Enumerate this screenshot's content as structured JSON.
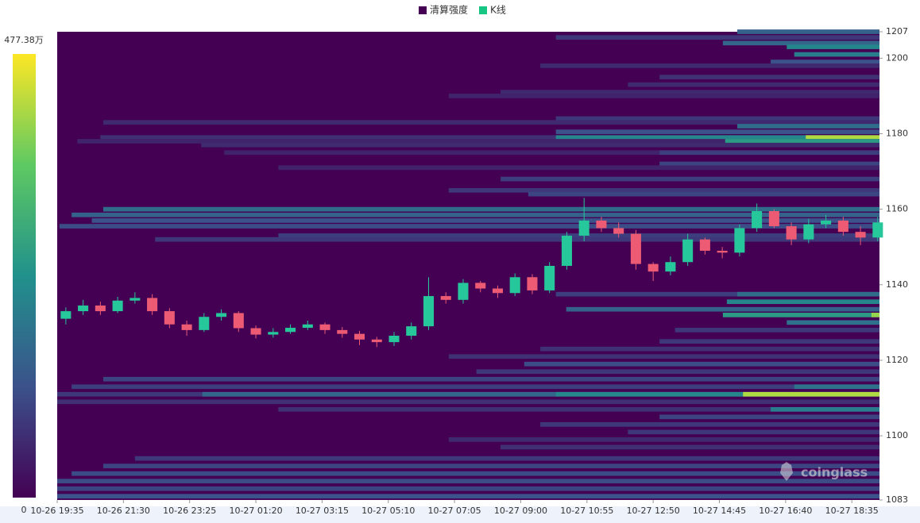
{
  "chart_data": {
    "type": "heatmap-candlestick",
    "watermark": "coinglass",
    "series": [
      {
        "name": "清算强度",
        "color": "#440154"
      },
      {
        "name": "K线",
        "color": "#16c784"
      }
    ],
    "clim": [
      0,
      {
        "value": 477.38,
        "label": "477.38万"
      }
    ],
    "xlim": [
      0,
      1428
    ],
    "xticks": [
      {
        "value": 0,
        "label": "10-26 19:35"
      },
      {
        "value": 115,
        "label": "10-26 21:30"
      },
      {
        "value": 230,
        "label": "10-26 23:25"
      },
      {
        "value": 345,
        "label": "10-27 01:20"
      },
      {
        "value": 460,
        "label": "10-27 03:15"
      },
      {
        "value": 575,
        "label": "10-27 05:10"
      },
      {
        "value": 690,
        "label": "10-27 07:05"
      },
      {
        "value": 805,
        "label": "10-27 09:00"
      },
      {
        "value": 920,
        "label": "10-27 10:55"
      },
      {
        "value": 1035,
        "label": "10-27 12:50"
      },
      {
        "value": 1150,
        "label": "10-27 14:45"
      },
      {
        "value": 1265,
        "label": "10-27 16:40"
      },
      {
        "value": 1380,
        "label": "10-27 18:35"
      }
    ],
    "ylim": [
      1083,
      1207
    ],
    "yticks": [
      1083,
      1100,
      1120,
      1140,
      1160,
      1180,
      1200,
      1207
    ],
    "up_color": "#26c79a",
    "down_color": "#ec5b73",
    "heatmap": [
      {
        "price": 1207,
        "from": 1181,
        "value": 150
      },
      {
        "price": 1205.5,
        "from": 866,
        "value": 80
      },
      {
        "price": 1204,
        "from": 1156,
        "value": 160
      },
      {
        "price": 1203,
        "from": 1267,
        "value": 220
      },
      {
        "price": 1201,
        "from": 1280,
        "value": 200
      },
      {
        "price": 1199,
        "from": 1239,
        "value": 120
      },
      {
        "price": 1198,
        "from": 839,
        "value": 60
      },
      {
        "price": 1195,
        "from": 1046,
        "value": 70
      },
      {
        "price": 1193,
        "from": 991,
        "value": 60
      },
      {
        "price": 1191,
        "from": 770,
        "value": 60
      },
      {
        "price": 1190,
        "from": 680,
        "value": 50
      },
      {
        "price": 1184,
        "from": 866,
        "value": 80
      },
      {
        "price": 1183,
        "from": 80,
        "value": 60
      },
      {
        "price": 1182,
        "from": 1181,
        "value": 170
      },
      {
        "price": 1180.5,
        "from": 866,
        "value": 120
      },
      {
        "price": 1179,
        "from": 75,
        "value": 70
      },
      {
        "price": 1179,
        "from": 866,
        "value": 220
      },
      {
        "price": 1179,
        "from": 1300,
        "value": 420
      },
      {
        "price": 1178,
        "from": 35,
        "value": 50
      },
      {
        "price": 1178,
        "from": 1160,
        "value": 260
      },
      {
        "price": 1177,
        "from": 250,
        "value": 60
      },
      {
        "price": 1175,
        "from": 290,
        "value": 50
      },
      {
        "price": 1175,
        "from": 1046,
        "value": 90
      },
      {
        "price": 1172,
        "from": 1046,
        "value": 100
      },
      {
        "price": 1171,
        "from": 384,
        "value": 50
      },
      {
        "price": 1168,
        "from": 770,
        "value": 90
      },
      {
        "price": 1165,
        "from": 680,
        "value": 80
      },
      {
        "price": 1164,
        "from": 818,
        "value": 100
      },
      {
        "price": 1160,
        "from": 80,
        "value": 170
      },
      {
        "price": 1158.5,
        "from": 25,
        "value": 150
      },
      {
        "price": 1157,
        "from": 60,
        "value": 120
      },
      {
        "price": 1155.5,
        "from": 4,
        "value": 110
      },
      {
        "price": 1153,
        "from": 384,
        "value": 90
      },
      {
        "price": 1152,
        "from": 170,
        "value": 80
      },
      {
        "price": 1137.5,
        "from": 866,
        "value": 90
      },
      {
        "price": 1137.5,
        "from": 1181,
        "value": 170
      },
      {
        "price": 1135.5,
        "from": 1163,
        "value": 220
      },
      {
        "price": 1133.5,
        "from": 884,
        "value": 150
      },
      {
        "price": 1132,
        "from": 1156,
        "value": 260
      },
      {
        "price": 1132,
        "from": 1414,
        "value": 400
      },
      {
        "price": 1130,
        "from": 1267,
        "value": 180
      },
      {
        "price": 1128,
        "from": 1073,
        "value": 80
      },
      {
        "price": 1125,
        "from": 1046,
        "value": 80
      },
      {
        "price": 1123,
        "from": 839,
        "value": 70
      },
      {
        "price": 1121,
        "from": 680,
        "value": 70
      },
      {
        "price": 1119,
        "from": 811,
        "value": 110
      },
      {
        "price": 1117,
        "from": 728,
        "value": 80
      },
      {
        "price": 1115,
        "from": 80,
        "value": 100
      },
      {
        "price": 1113,
        "from": 25,
        "value": 90
      },
      {
        "price": 1113,
        "from": 1280,
        "value": 180
      },
      {
        "price": 1111,
        "from": 0,
        "value": 80
      },
      {
        "price": 1111,
        "from": 252,
        "value": 160
      },
      {
        "price": 1111,
        "from": 866,
        "value": 220
      },
      {
        "price": 1111,
        "from": 1191,
        "value": 420
      },
      {
        "price": 1109,
        "from": 0,
        "value": 70
      },
      {
        "price": 1107,
        "from": 384,
        "value": 70
      },
      {
        "price": 1107,
        "from": 1239,
        "value": 200
      },
      {
        "price": 1105,
        "from": 1046,
        "value": 100
      },
      {
        "price": 1103,
        "from": 839,
        "value": 80
      },
      {
        "price": 1101,
        "from": 991,
        "value": 80
      },
      {
        "price": 1099,
        "from": 680,
        "value": 60
      },
      {
        "price": 1097,
        "from": 770,
        "value": 70
      },
      {
        "price": 1094,
        "from": 135,
        "value": 80
      },
      {
        "price": 1092,
        "from": 80,
        "value": 100
      },
      {
        "price": 1090,
        "from": 25,
        "value": 110
      },
      {
        "price": 1088,
        "from": 0,
        "value": 110
      },
      {
        "price": 1086,
        "from": 0,
        "value": 100
      },
      {
        "price": 1084,
        "from": 0,
        "value": 120
      }
    ],
    "x": [
      0,
      30,
      60,
      90,
      120,
      150,
      180,
      210,
      240,
      270,
      300,
      330,
      360,
      390,
      420,
      450,
      480,
      510,
      540,
      570,
      600,
      630,
      660,
      690,
      720,
      750,
      780,
      810,
      840,
      870,
      900,
      930,
      960,
      990,
      1020,
      1050,
      1080,
      1110,
      1140,
      1170,
      1200,
      1230,
      1260,
      1290,
      1320,
      1350,
      1380,
      1410
    ],
    "open": [
      1131,
      1133,
      1134.5,
      1133,
      1135.8,
      1136.5,
      1133,
      1129.5,
      1128,
      1131.5,
      1132.5,
      1128.5,
      1126.8,
      1127.5,
      1128.6,
      1129.5,
      1128,
      1127,
      1125.5,
      1124.8,
      1126.5,
      1129,
      1137,
      1136,
      1140.5,
      1139,
      1137.8,
      1142,
      1138.5,
      1145,
      1153,
      1157,
      1155,
      1153.5,
      1145.5,
      1143.5,
      1146,
      1152,
      1149,
      1148.5,
      1155,
      1159.5,
      1155.5,
      1152,
      1156,
      1157,
      1154,
      1152.5
    ],
    "close": [
      1133,
      1134.5,
      1133,
      1135.8,
      1136.5,
      1133,
      1129.5,
      1128,
      1131.5,
      1132.5,
      1128.5,
      1126.8,
      1127.5,
      1128.6,
      1129.5,
      1128,
      1127,
      1125.5,
      1124.8,
      1126.5,
      1129,
      1137,
      1136,
      1140.5,
      1139,
      1137.8,
      1142,
      1138.5,
      1145,
      1153,
      1157,
      1155,
      1153.5,
      1145.5,
      1143.5,
      1146,
      1152,
      1149,
      1148.5,
      1155,
      1159.5,
      1155.5,
      1152,
      1156,
      1157,
      1154,
      1152.5,
      1156.5
    ],
    "high": [
      1134,
      1136,
      1135.5,
      1136.8,
      1138,
      1137.5,
      1133.8,
      1130.5,
      1132.5,
      1133.5,
      1133,
      1129.2,
      1128.5,
      1129.5,
      1130.5,
      1130,
      1128.8,
      1127.8,
      1126.2,
      1127.5,
      1130,
      1142,
      1138,
      1141.5,
      1141,
      1139.8,
      1143,
      1142.8,
      1146,
      1154,
      1163,
      1158,
      1156.5,
      1154.5,
      1146,
      1147.5,
      1153.5,
      1152.5,
      1150,
      1156,
      1161.5,
      1160,
      1156.5,
      1157.5,
      1158.5,
      1158,
      1155.5,
      1158
    ],
    "low": [
      1129.5,
      1132,
      1132,
      1132.5,
      1135,
      1132,
      1128.5,
      1126.5,
      1127.5,
      1130.5,
      1127.5,
      1125.8,
      1126,
      1127,
      1128,
      1127,
      1126,
      1124,
      1123.5,
      1123.8,
      1125.5,
      1128,
      1135,
      1135,
      1138,
      1136.5,
      1137,
      1137.5,
      1137.8,
      1144,
      1151.5,
      1154,
      1152.5,
      1144,
      1141,
      1142.5,
      1145,
      1148,
      1147,
      1147.5,
      1154,
      1155,
      1150.5,
      1151,
      1155,
      1153,
      1150.5,
      1151.5
    ]
  }
}
